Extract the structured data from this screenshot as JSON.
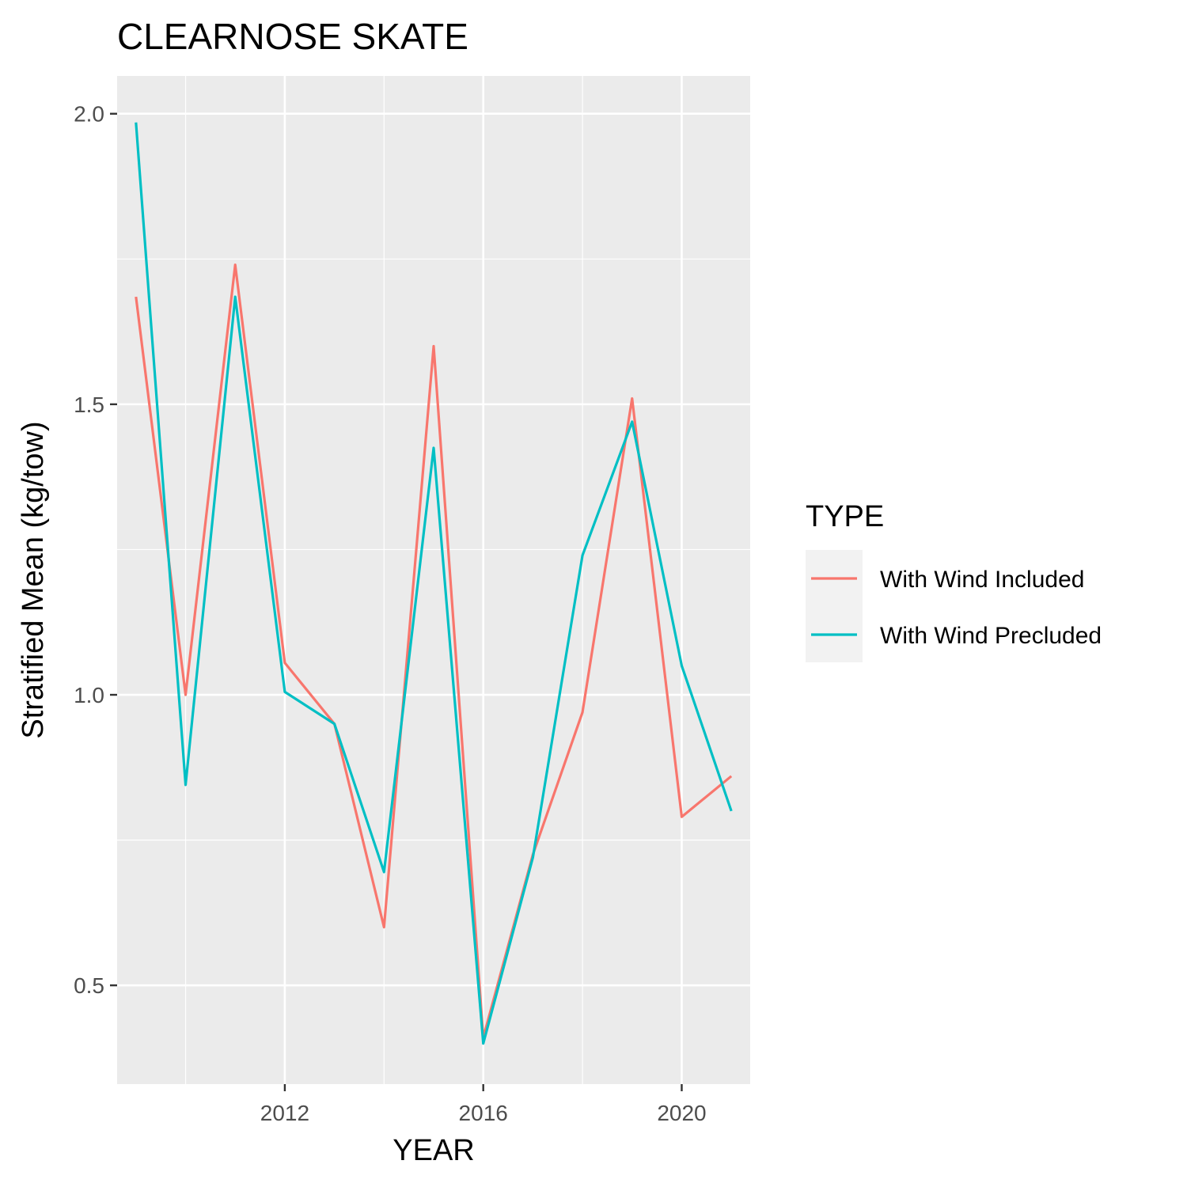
{
  "chart_data": {
    "type": "line",
    "title": "CLEARNOSE SKATE",
    "xlabel": "YEAR",
    "ylabel": "Stratified Mean (kg/tow)",
    "x": [
      2009,
      2010,
      2011,
      2012,
      2013,
      2014,
      2015,
      2016,
      2017,
      2018,
      2019,
      2020,
      2021
    ],
    "xlim": [
      2008.62,
      2021.38
    ],
    "ylim": [
      0.33,
      2.065
    ],
    "xticks": [
      2012,
      2016,
      2020
    ],
    "xtick_labels": [
      "2012",
      "2016",
      "2020"
    ],
    "xminor": [
      2010,
      2014,
      2018
    ],
    "yticks": [
      0.5,
      1.0,
      1.5,
      2.0
    ],
    "ytick_labels": [
      "0.5",
      "1.0",
      "1.5",
      "2.0"
    ],
    "yminor": [
      0.75,
      1.25,
      1.75
    ],
    "series": [
      {
        "name": "With Wind Included",
        "color": "#F8766D",
        "values": [
          1.685,
          1.0,
          1.74,
          1.055,
          0.95,
          0.6,
          1.6,
          0.41,
          0.725,
          0.97,
          1.51,
          0.79,
          0.86
        ]
      },
      {
        "name": "With Wind Precluded",
        "color": "#00BFC4",
        "values": [
          1.985,
          0.845,
          1.685,
          1.005,
          0.95,
          0.695,
          1.425,
          0.4,
          0.72,
          1.24,
          1.47,
          1.05,
          0.8
        ]
      }
    ],
    "grid": true,
    "legend": {
      "title": "TYPE",
      "position": "right"
    },
    "colors": {
      "panel_background": "#EBEBEB",
      "grid": "#FFFFFF",
      "tick_text": "#4D4D4D",
      "legend_key_background": "#F2F2F2"
    }
  }
}
